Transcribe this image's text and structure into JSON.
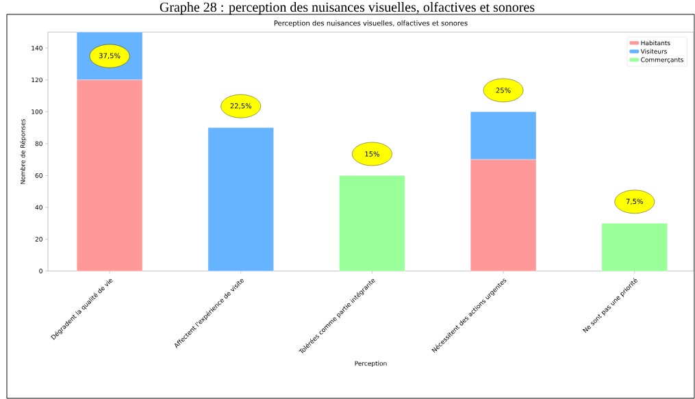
{
  "chart_data": {
    "type": "bar",
    "title": "Graphe 28 : perception des nuisances visuelles, olfactives et sonores",
    "subtitle": "Perception des nuisances visuelles, olfactives et sonores",
    "xlabel": "Perception",
    "ylabel": "Nombre de Réponses",
    "categories": [
      "Dégradent la qualité de vie",
      "Affectent l'expérience de visite",
      "Tolérées comme partie intégrante",
      "Nécessitent des actions urgentes",
      "Ne sont pas une priorité"
    ],
    "series": [
      {
        "name": "Habitants",
        "color": "#ff9999",
        "values": [
          120,
          0,
          0,
          70,
          0
        ]
      },
      {
        "name": "Visiteurs",
        "color": "#66b3ff",
        "values": [
          30,
          90,
          0,
          30,
          0
        ]
      },
      {
        "name": "Commerçants",
        "color": "#99ff99",
        "values": [
          0,
          0,
          60,
          0,
          30
        ]
      }
    ],
    "stacked": true,
    "ylim": [
      0,
      150
    ],
    "yticks": [
      0,
      20,
      40,
      60,
      80,
      100,
      120,
      140
    ],
    "grid": false,
    "legend": "top right",
    "annotations": [
      "37,5%",
      "22,5%",
      "15%",
      "25%",
      "7,5%"
    ]
  }
}
